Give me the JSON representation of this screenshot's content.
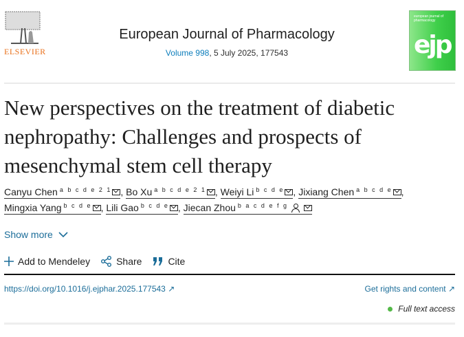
{
  "header": {
    "publisher": "ELSEVIER",
    "journal_title": "European Journal of Pharmacology",
    "volume_link": "Volume 998",
    "issue_info": ", 5 July 2025, 177543",
    "cover_text": "european journal of pharmacology",
    "cover_logo": "ejp"
  },
  "article": {
    "title": "New perspectives on the treatment of diabetic nephropathy: Challenges and prospects of mesenchymal stem cell therapy"
  },
  "authors": [
    {
      "name": "Canyu Chen",
      "sup": "a b c d e 2 1"
    },
    {
      "name": "Bo Xu",
      "sup": "a b c d e 2 1"
    },
    {
      "name": "Weiyi Li",
      "sup": "b c d e"
    },
    {
      "name": "Jixiang Chen",
      "sup": "a b c d e"
    },
    {
      "name": "Mingxia Yang",
      "sup": "b c d e"
    },
    {
      "name": "Lili Gao",
      "sup": "b c d e"
    },
    {
      "name": "Jiecan Zhou",
      "sup": "b a c d e f g"
    }
  ],
  "show_more": "Show more",
  "actions": {
    "mendeley": "Add to Mendeley",
    "share": "Share",
    "cite": "Cite"
  },
  "doi": "https://doi.org/10.1016/j.ejphar.2025.177543",
  "rights": "Get rights and content",
  "access": "Full text access",
  "colors": {
    "link": "#1b6d99",
    "elsevier": "#e9711c",
    "access_dot": "#54b948"
  }
}
